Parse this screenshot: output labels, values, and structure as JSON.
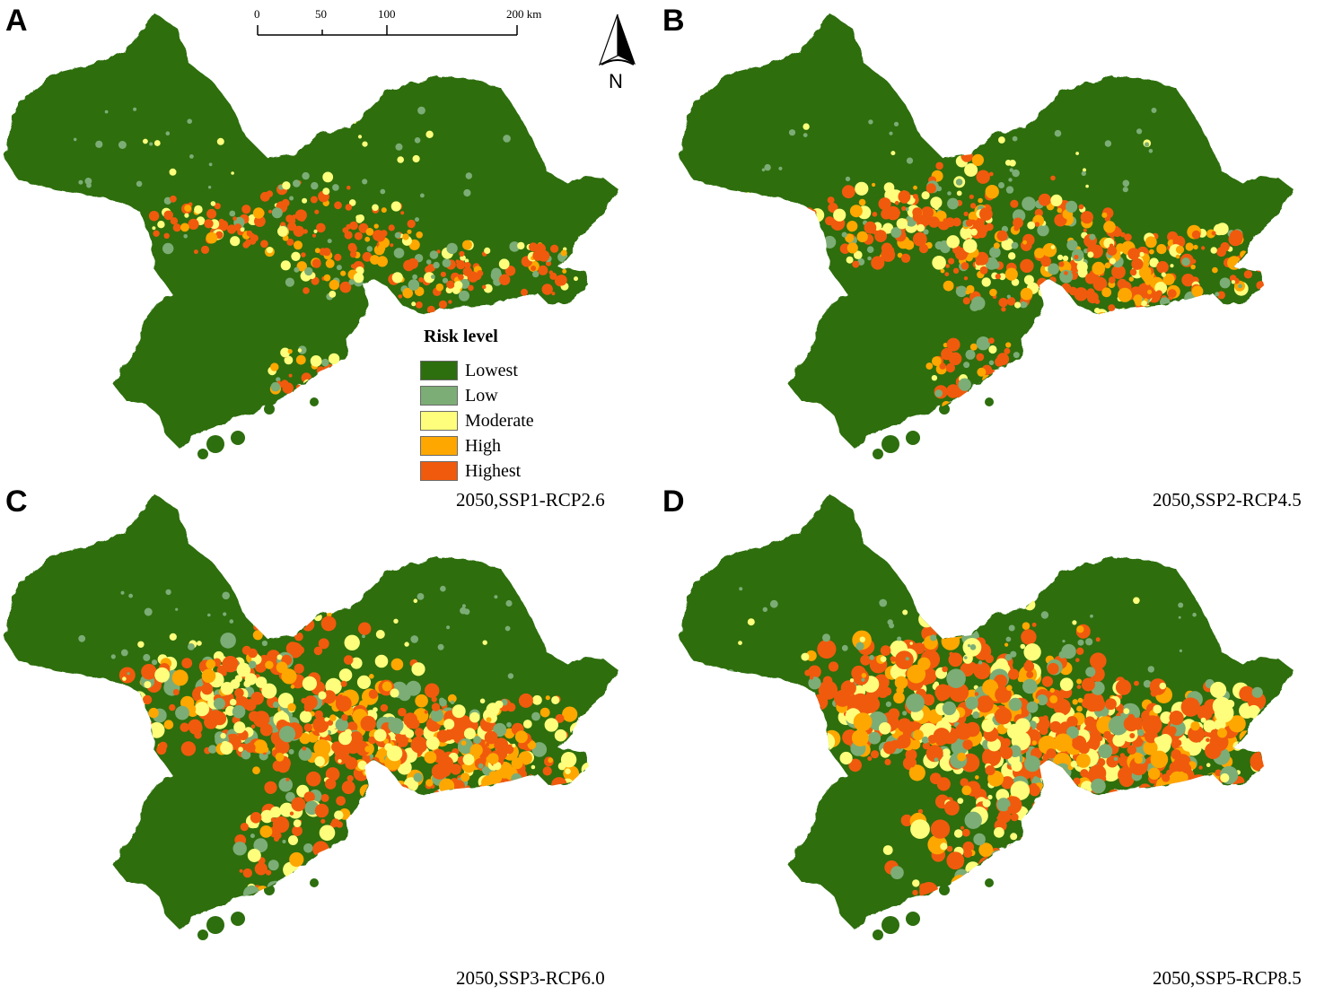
{
  "panels": [
    {
      "letter": "A",
      "scenario": "2050,SSP1-RCP2.6",
      "intensity": 1
    },
    {
      "letter": "B",
      "scenario": "2050,SSP2-RCP4.5",
      "intensity": 2
    },
    {
      "letter": "C",
      "scenario": "2050,SSP3-RCP6.0",
      "intensity": 3
    },
    {
      "letter": "D",
      "scenario": "2050,SSP5-RCP8.5",
      "intensity": 4
    }
  ],
  "legend": {
    "title": "Risk level",
    "items": [
      {
        "label": "Lowest",
        "color": "#2d6e0e"
      },
      {
        "label": "Low",
        "color": "#7cad76"
      },
      {
        "label": "Moderate",
        "color": "#fefe7c"
      },
      {
        "label": "High",
        "color": "#fea700"
      },
      {
        "label": "Highest",
        "color": "#f05a0d"
      }
    ]
  },
  "scale_bar": {
    "ticks": [
      "0",
      "50",
      "100",
      "200 km"
    ]
  },
  "north_arrow": {
    "label": "N"
  }
}
